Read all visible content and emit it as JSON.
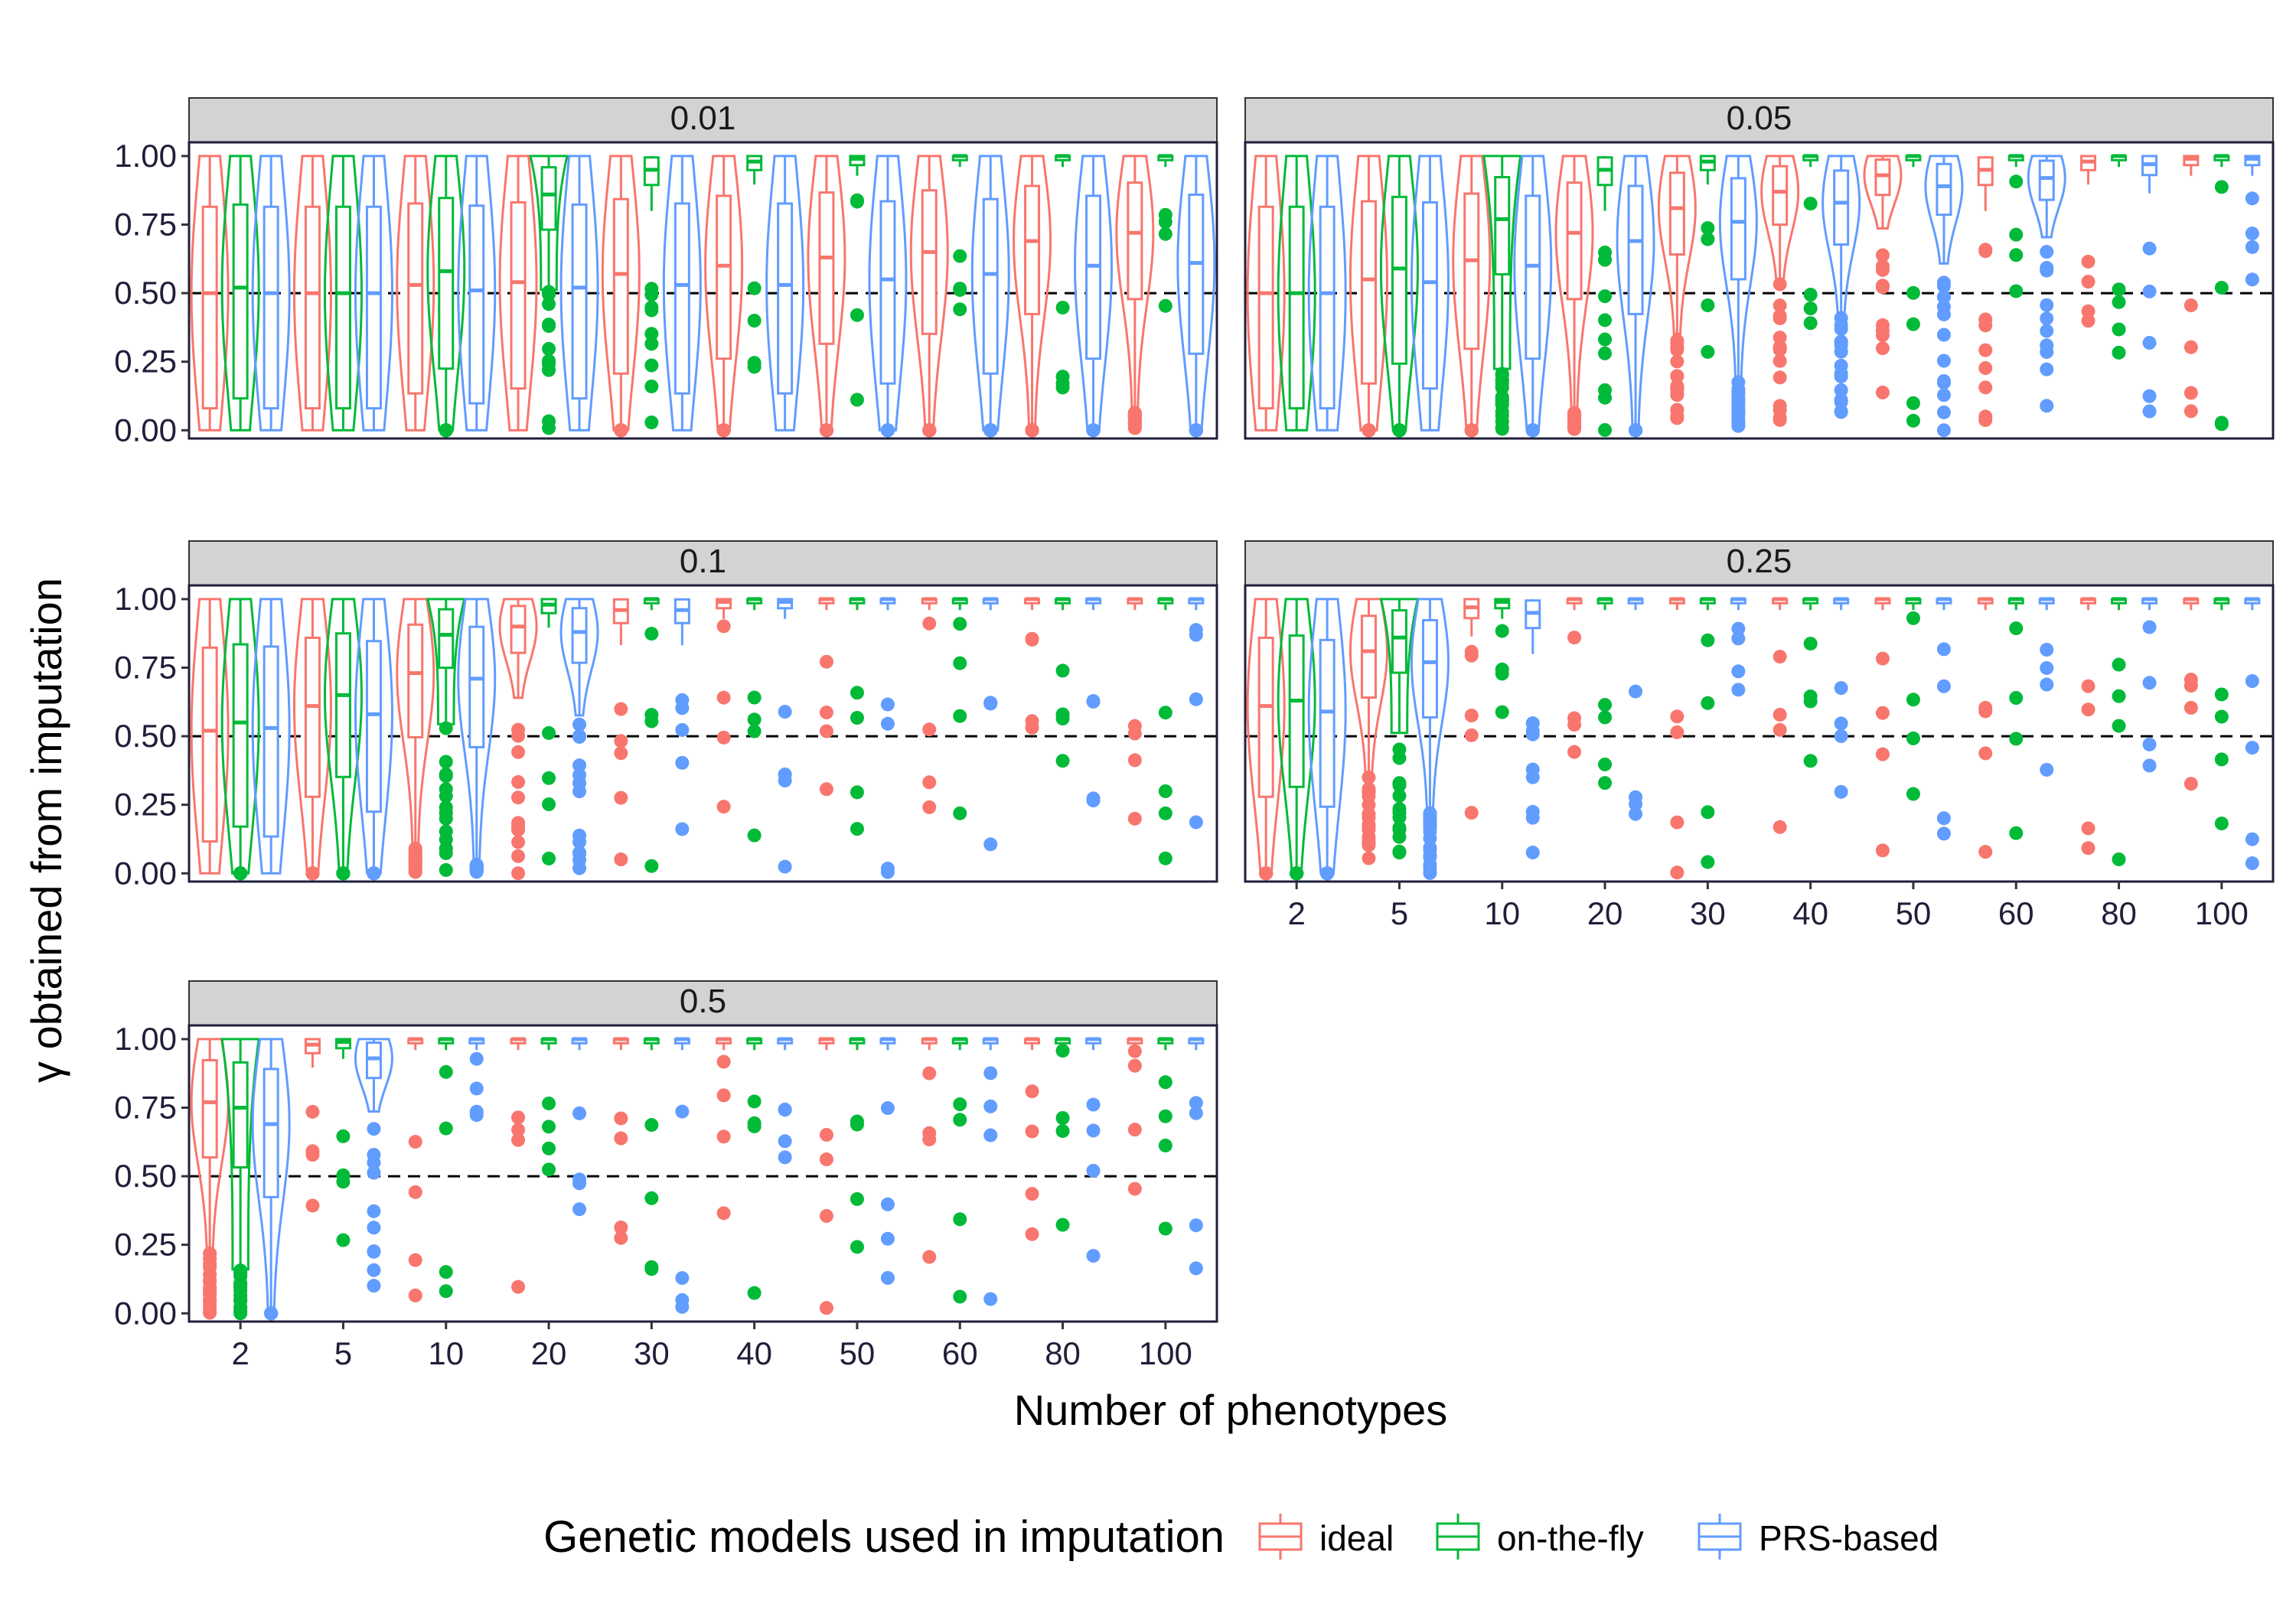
{
  "chart_data": {
    "type": "violin",
    "xlabel": "Number of phenotypes",
    "ylabel": "γ obtained from imputation",
    "categories": [
      "2",
      "5",
      "10",
      "20",
      "30",
      "40",
      "50",
      "60",
      "80",
      "100"
    ],
    "yticks": [
      "0.00",
      "0.25",
      "0.50",
      "0.75",
      "1.00"
    ],
    "ylim": [
      -0.03,
      1.05
    ],
    "reference_line": 0.5,
    "grid": false,
    "legend": {
      "title": "Genetic models used in imputation",
      "position": "bottom",
      "entries": [
        {
          "name": "ideal",
          "color": "#F8766D"
        },
        {
          "name": "on-the-fly",
          "color": "#00BA38"
        },
        {
          "name": "PRS-based",
          "color": "#619CFF"
        }
      ]
    },
    "panels": [
      {
        "label": "0.01",
        "medians": {
          "ideal": [
            0.5,
            0.5,
            0.53,
            0.54,
            0.57,
            0.6,
            0.63,
            0.65,
            0.69,
            0.72
          ],
          "on-the-fly": [
            0.52,
            0.5,
            0.58,
            0.86,
            0.95,
            0.98,
            0.99,
            1.0,
            1.0,
            1.0
          ],
          "PRS-based": [
            0.5,
            0.5,
            0.51,
            0.52,
            0.53,
            0.53,
            0.55,
            0.57,
            0.6,
            0.61
          ]
        }
      },
      {
        "label": "0.05",
        "medians": {
          "ideal": [
            0.5,
            0.55,
            0.62,
            0.72,
            0.81,
            0.87,
            0.93,
            0.95,
            0.98,
            0.99
          ],
          "on-the-fly": [
            0.5,
            0.59,
            0.77,
            0.95,
            0.98,
            1.0,
            1.0,
            1.0,
            1.0,
            1.0
          ],
          "PRS-based": [
            0.5,
            0.54,
            0.6,
            0.69,
            0.76,
            0.83,
            0.89,
            0.92,
            0.97,
            0.99
          ]
        }
      },
      {
        "label": "0.1",
        "medians": {
          "ideal": [
            0.52,
            0.61,
            0.73,
            0.9,
            0.96,
            0.99,
            1.0,
            1.0,
            1.0,
            1.0
          ],
          "on-the-fly": [
            0.55,
            0.65,
            0.87,
            0.98,
            1.0,
            1.0,
            1.0,
            1.0,
            1.0,
            1.0
          ],
          "PRS-based": [
            0.53,
            0.58,
            0.71,
            0.88,
            0.96,
            0.99,
            1.0,
            1.0,
            1.0,
            1.0
          ]
        }
      },
      {
        "label": "0.25",
        "medians": {
          "ideal": [
            0.61,
            0.81,
            0.97,
            1.0,
            1.0,
            1.0,
            1.0,
            1.0,
            1.0,
            1.0
          ],
          "on-the-fly": [
            0.63,
            0.86,
            0.99,
            1.0,
            1.0,
            1.0,
            1.0,
            1.0,
            1.0,
            1.0
          ],
          "PRS-based": [
            0.59,
            0.77,
            0.95,
            1.0,
            1.0,
            1.0,
            1.0,
            1.0,
            1.0,
            1.0
          ]
        }
      },
      {
        "label": "0.5",
        "medians": {
          "ideal": [
            0.77,
            0.98,
            1.0,
            1.0,
            1.0,
            1.0,
            1.0,
            1.0,
            1.0,
            1.0
          ],
          "on-the-fly": [
            0.75,
            0.99,
            1.0,
            1.0,
            1.0,
            1.0,
            1.0,
            1.0,
            1.0,
            1.0
          ],
          "PRS-based": [
            0.69,
            0.93,
            1.0,
            1.0,
            1.0,
            1.0,
            1.0,
            1.0,
            1.0,
            1.0
          ]
        }
      }
    ]
  }
}
